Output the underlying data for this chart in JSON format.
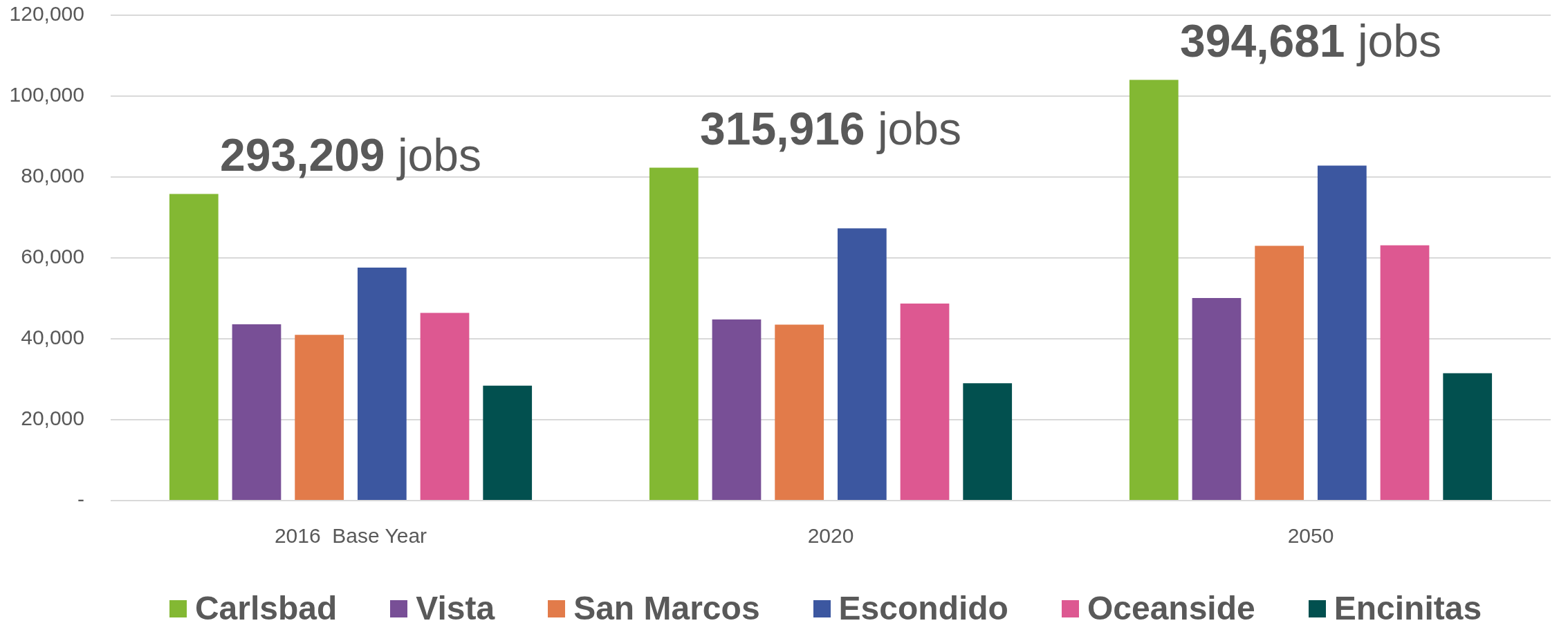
{
  "chart_data": {
    "type": "bar",
    "categories": [
      "2016  Base Year",
      "2020",
      "2050"
    ],
    "series": [
      {
        "name": "Carlsbad",
        "color": "#83b833",
        "values": [
          75800,
          82300,
          104000
        ]
      },
      {
        "name": "Vista",
        "color": "#784f96",
        "values": [
          43600,
          44800,
          50100
        ]
      },
      {
        "name": "San Marcos",
        "color": "#e27b4a",
        "values": [
          41000,
          43500,
          63000
        ]
      },
      {
        "name": "Escondido",
        "color": "#3c57a0",
        "values": [
          57600,
          67300,
          82800
        ]
      },
      {
        "name": "Oceanside",
        "color": "#dd5891",
        "values": [
          46400,
          48700,
          63100
        ]
      },
      {
        "name": "Encinitas",
        "color": "#02504f",
        "values": [
          28400,
          29000,
          31500
        ]
      }
    ],
    "ylim": [
      0,
      120000
    ],
    "yticks": [
      {
        "value": 0,
        "label": "-"
      },
      {
        "value": 20000,
        "label": "20,000"
      },
      {
        "value": 40000,
        "label": "40,000"
      },
      {
        "value": 60000,
        "label": "60,000"
      },
      {
        "value": 80000,
        "label": "80,000"
      },
      {
        "value": 100000,
        "label": "100,000"
      },
      {
        "value": 120000,
        "label": "120,000"
      }
    ],
    "grid": "y",
    "legend": "bottom",
    "annotations": [
      "293,209 jobs",
      "315,916 jobs",
      "394,681 jobs"
    ]
  }
}
